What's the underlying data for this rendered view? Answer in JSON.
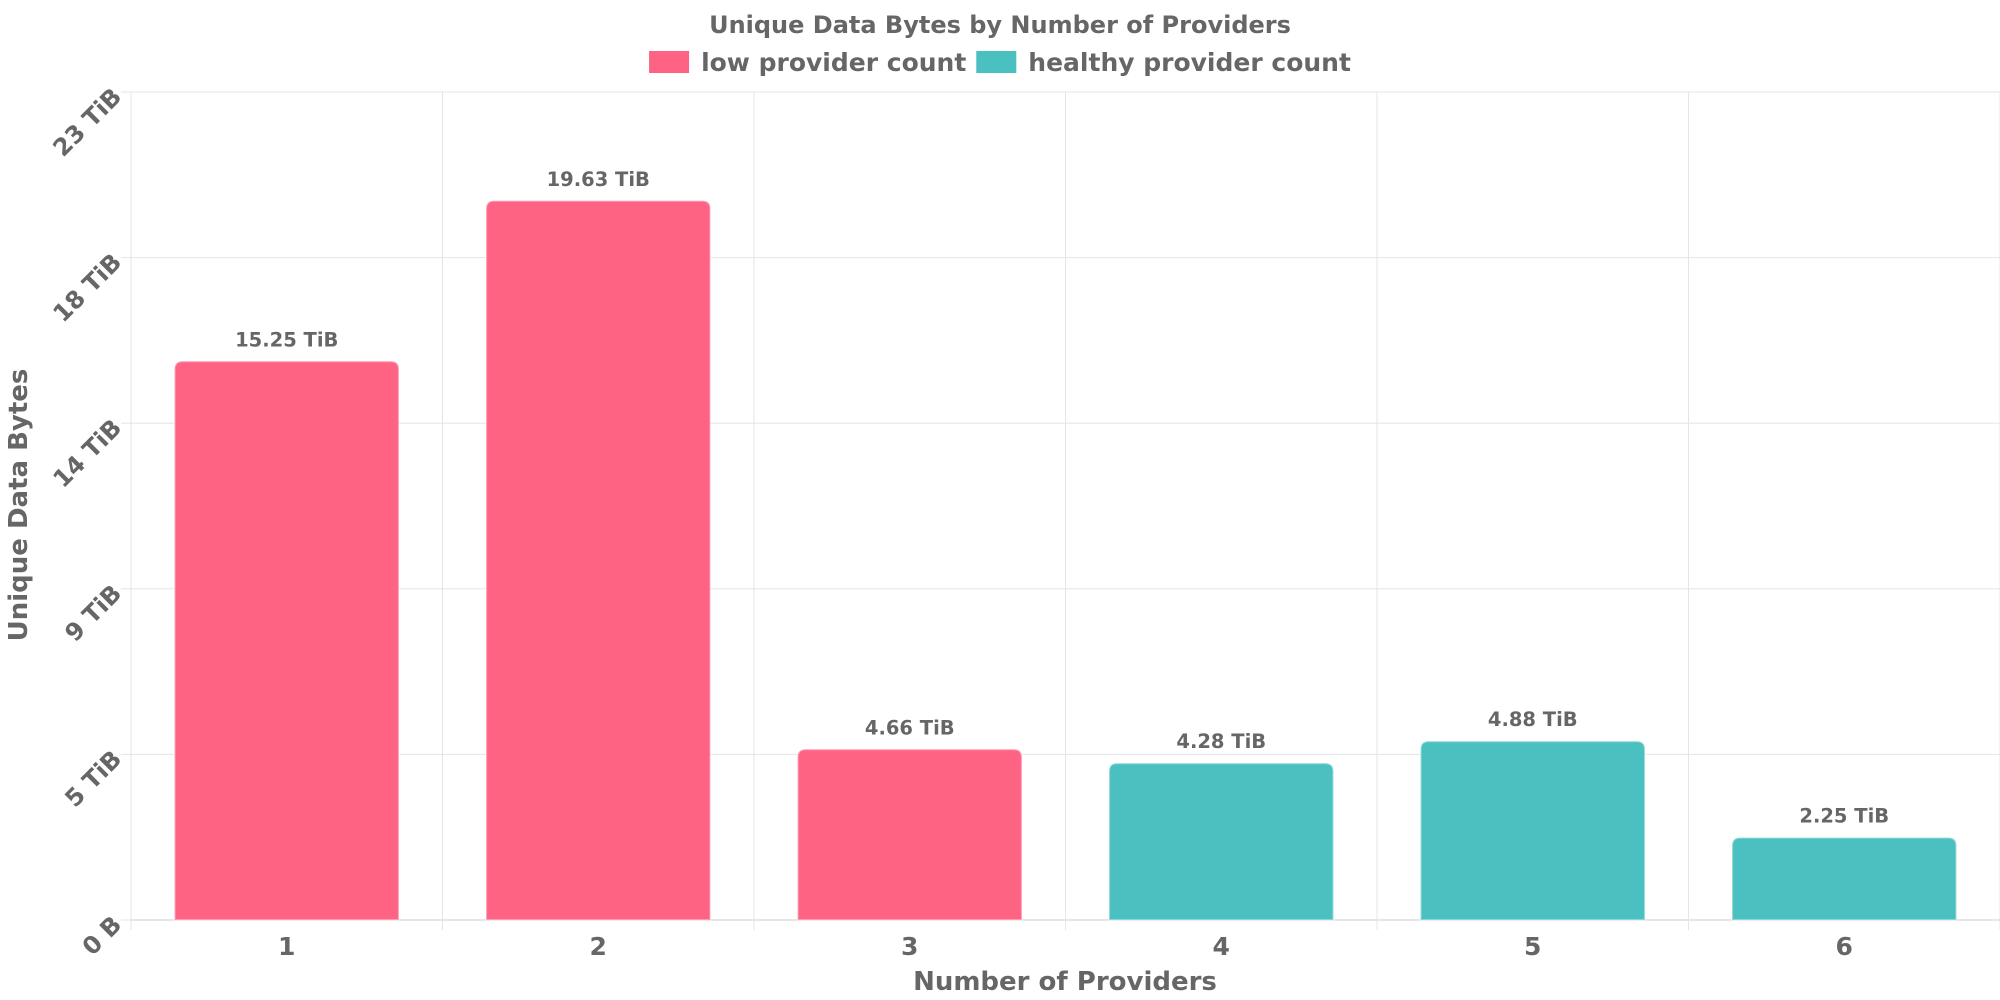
{
  "chart_data": {
    "type": "bar",
    "title": "Unique Data Bytes by Number of Providers",
    "xlabel": "Number of Providers",
    "ylabel": "Unique Data Bytes",
    "categories": [
      "1",
      "2",
      "3",
      "4",
      "5",
      "6"
    ],
    "values": [
      15.25,
      19.63,
      4.66,
      4.28,
      4.88,
      2.25
    ],
    "value_unit": "TiB",
    "data_labels": [
      "15.25 TiB",
      "19.63 TiB",
      "4.66 TiB",
      "4.28 TiB",
      "4.88 TiB",
      "2.25 TiB"
    ],
    "bar_series": [
      "low provider count",
      "low provider count",
      "low provider count",
      "healthy provider count",
      "healthy provider count",
      "healthy provider count"
    ],
    "ylim": [
      0,
      22.6
    ],
    "y_ticks": [
      {
        "value": 0,
        "label": "0 B"
      },
      {
        "value": 4.52,
        "label": "5 TiB"
      },
      {
        "value": 9.04,
        "label": "9 TiB"
      },
      {
        "value": 13.56,
        "label": "14 TiB"
      },
      {
        "value": 18.08,
        "label": "18 TiB"
      },
      {
        "value": 22.6,
        "label": "23 TiB"
      }
    ],
    "grid": true,
    "legend": {
      "position": "top",
      "items": [
        {
          "name": "low provider count",
          "color": "#ff6384"
        },
        {
          "name": "healthy provider count",
          "color": "#4bc0c0"
        }
      ]
    },
    "colors": {
      "low provider count": "#ff6384",
      "healthy provider count": "#4bc0c0",
      "text": "#666666",
      "grid": "#e5e5e5"
    }
  }
}
